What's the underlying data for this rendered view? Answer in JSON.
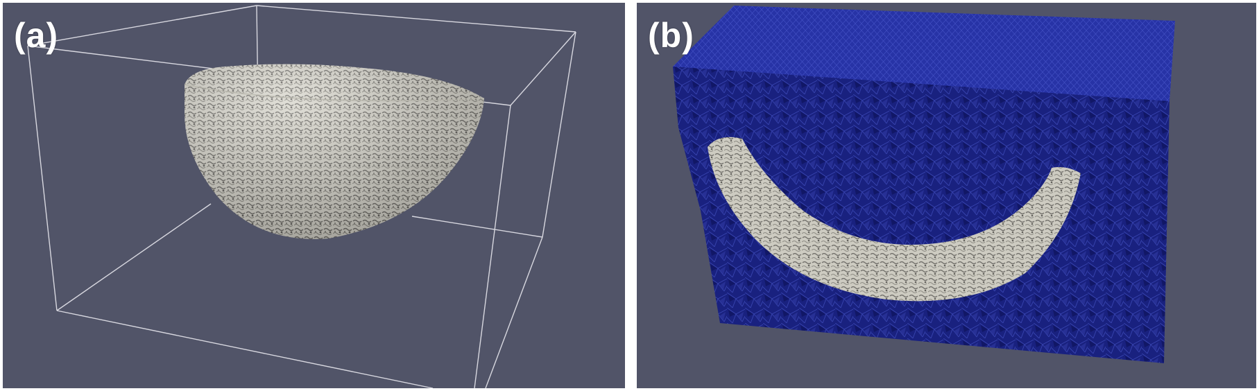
{
  "panels": [
    {
      "label": "(a)",
      "background": "#515468",
      "box_color": "#d8d8e0",
      "scaffold_color": "#d9d7ce"
    },
    {
      "label": "(b)",
      "background": "#515468",
      "mesh_color": "#1e2a8f",
      "scaffold_color": "#d9d7ce"
    }
  ]
}
